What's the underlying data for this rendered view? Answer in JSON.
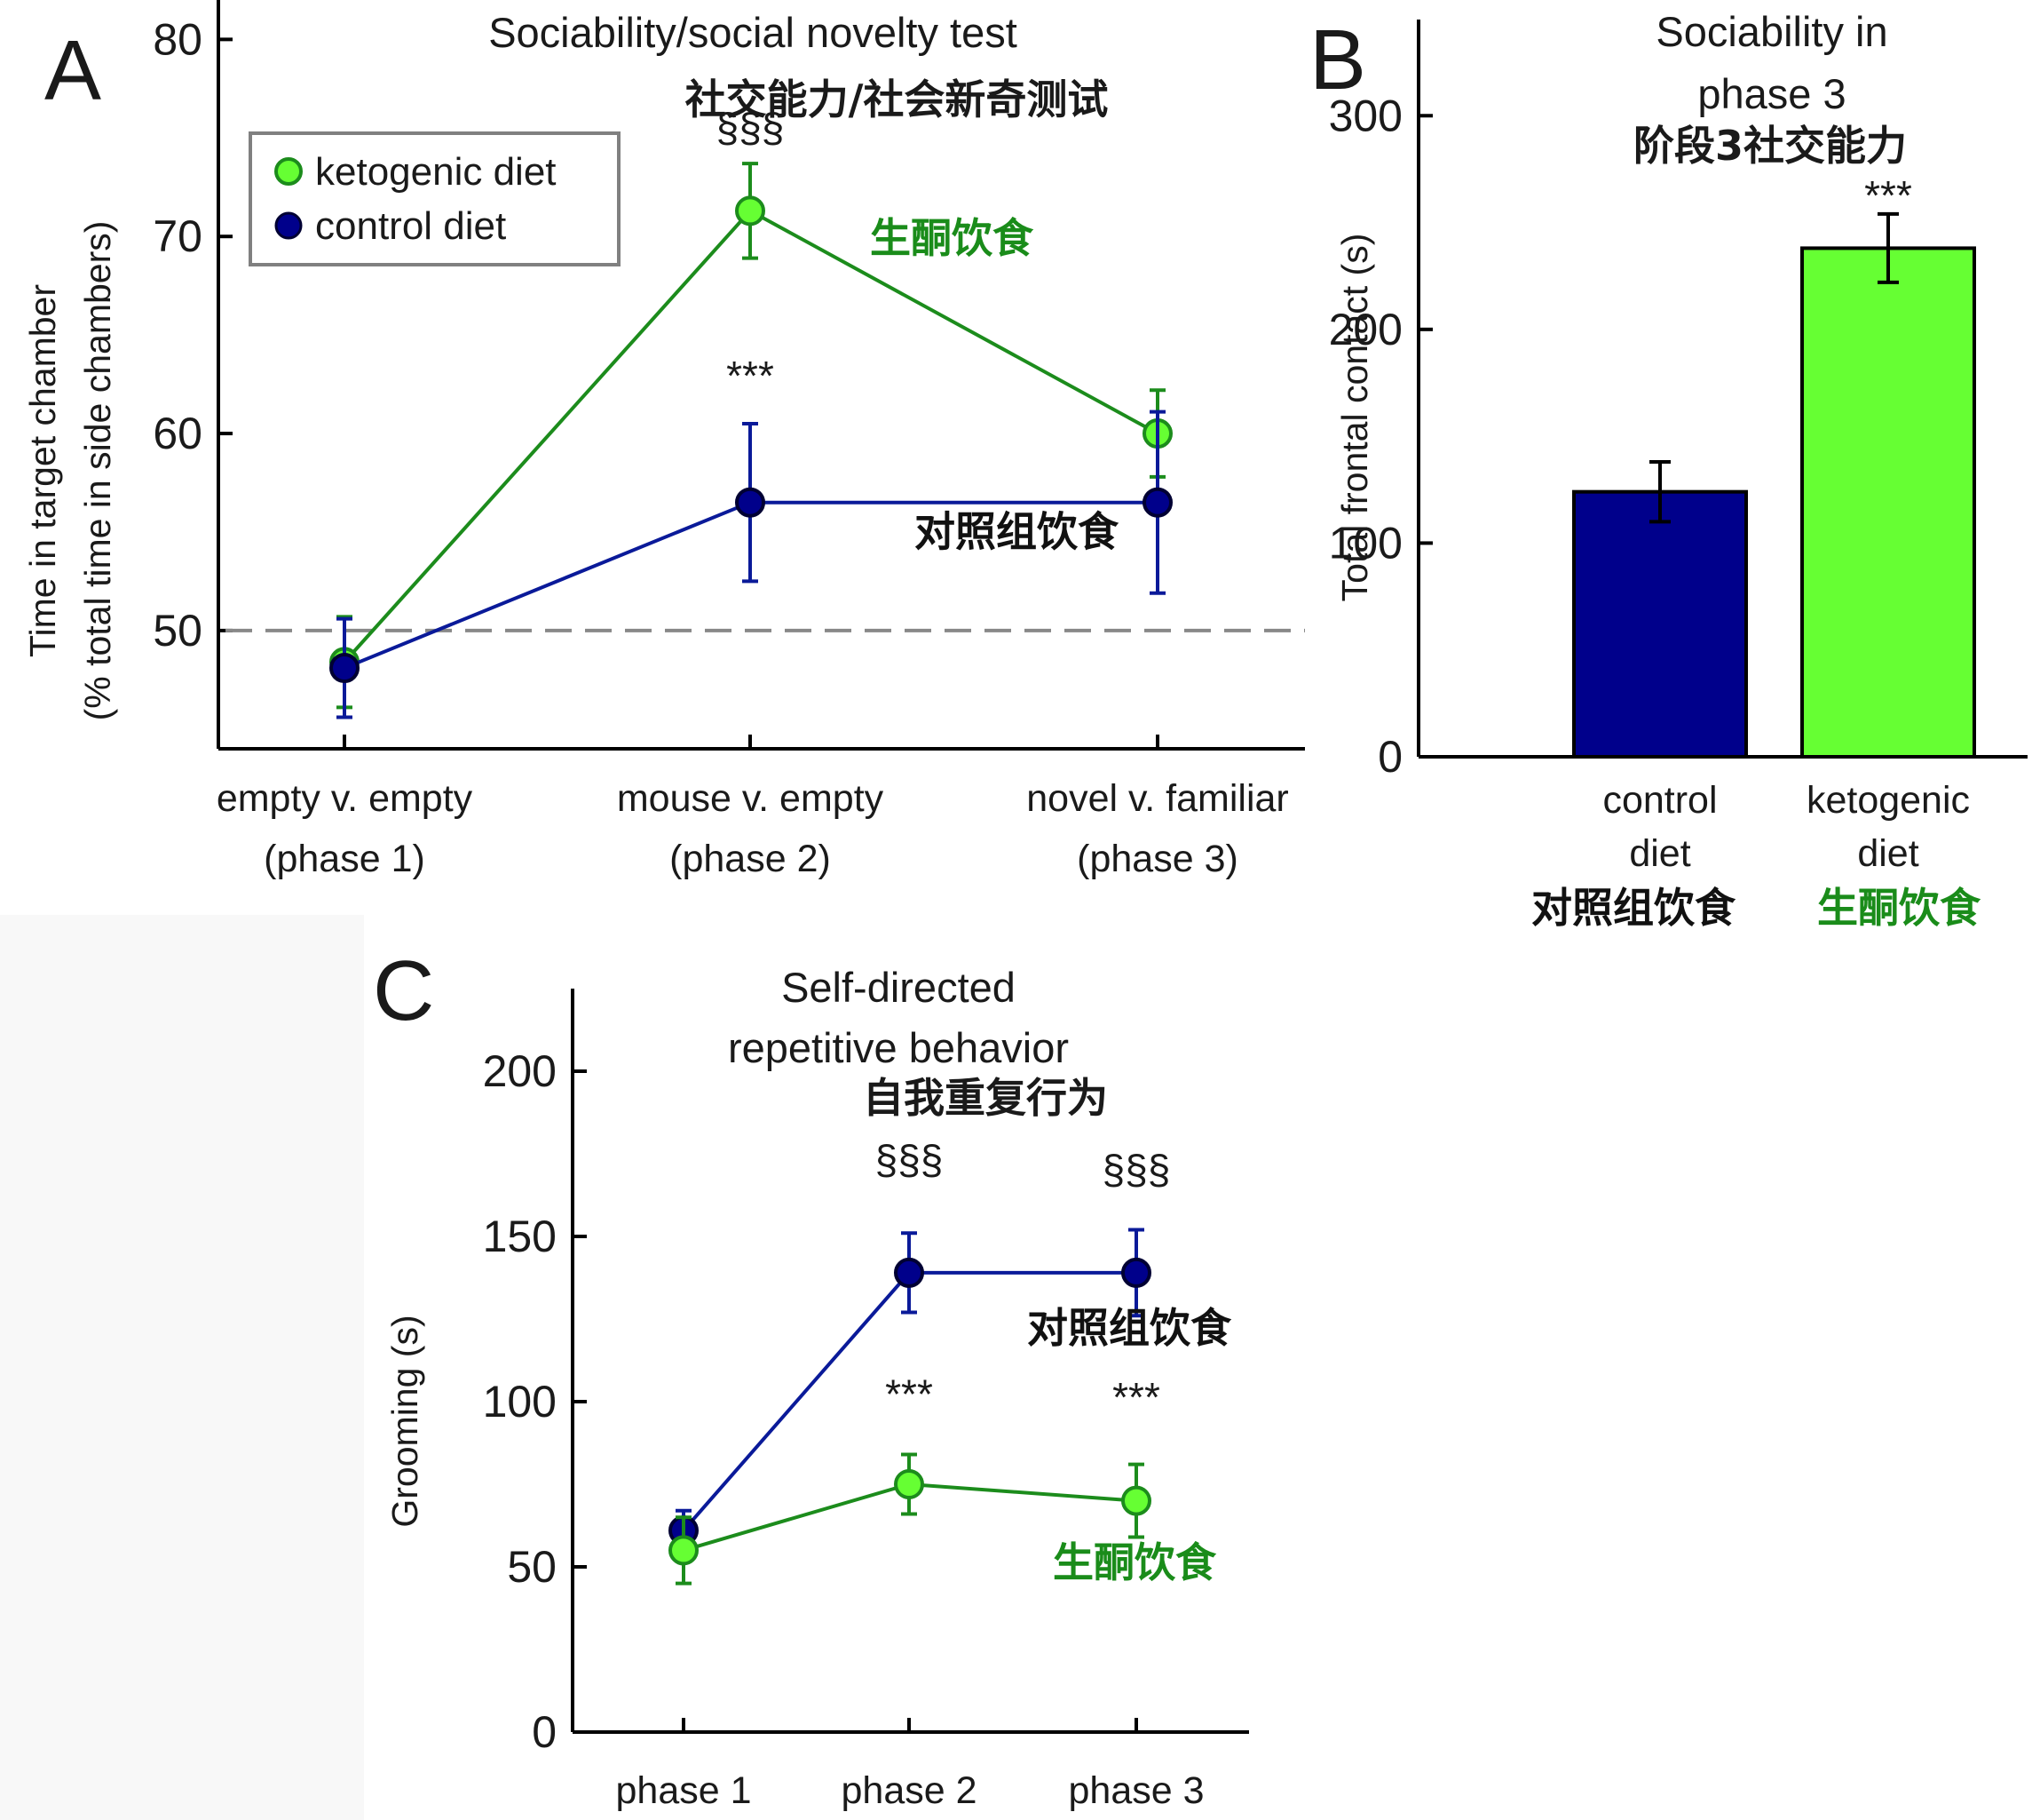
{
  "colors": {
    "ketogenic": "#66ff33",
    "ketogenic_line": "#1c8c1c",
    "control": "#00008b",
    "control_line": "#0a1a99",
    "axis": "#000000",
    "reference": "#888888",
    "cn_title": "#ff1e2e",
    "cn_keto": "#1a8c1a",
    "cn_control": "#111111"
  },
  "chart_data": [
    {
      "panel": "A",
      "type": "line",
      "title": "Sociability/social novelty test",
      "title_cn": "社交能力/社会新奇测试",
      "ylabel": "Time in target chamber",
      "ylabel2": "(% total time in side chambers)",
      "xlabel": "",
      "ylim": [
        44,
        82
      ],
      "yticks": [
        50,
        60,
        70,
        80
      ],
      "categories": [
        [
          "empty v. empty",
          "(phase 1)"
        ],
        [
          "mouse v. empty",
          "(phase 2)"
        ],
        [
          "novel v. familiar",
          "(phase 3)"
        ]
      ],
      "reference_line": 50,
      "grid": false,
      "legend_position": "top-left",
      "series": [
        {
          "key": "control",
          "name": "control diet",
          "label_cn": "对照组饮食",
          "values": [
            48.1,
            56.5,
            56.5
          ],
          "errors": [
            2.5,
            4.0,
            4.6
          ]
        },
        {
          "key": "ketogenic",
          "name": "ketogenic diet",
          "label_cn": "生酮饮食",
          "values": [
            48.4,
            71.3,
            60.0
          ],
          "errors": [
            2.3,
            2.4,
            2.2
          ]
        }
      ],
      "annotations": [
        {
          "text": "§§§",
          "x": 1,
          "y": 74.8
        },
        {
          "text": "***",
          "x": 1,
          "y": 62.2
        }
      ]
    },
    {
      "panel": "B",
      "type": "bar",
      "title": "Sociability in",
      "title2": "phase 3",
      "title_cn": "阶段3社交能力",
      "ylabel": "Total frontal contact (s)",
      "xlabel": "",
      "ylim": [
        0,
        345
      ],
      "yticks": [
        0,
        100,
        200,
        300
      ],
      "grid": false,
      "categories": [
        {
          "line1": "control",
          "line2": "diet",
          "cn": "对照组饮食"
        },
        {
          "line1": "ketogenic",
          "line2": "diet",
          "cn": "生酮饮食"
        }
      ],
      "values": [
        124,
        238
      ],
      "errors": [
        14,
        16
      ],
      "annotations": [
        {
          "text": "***",
          "x": 1,
          "y": 262
        }
      ]
    },
    {
      "panel": "C",
      "type": "line",
      "title": "Self-directed",
      "title2": "repetitive behavior",
      "title_cn": "自我重复行为",
      "ylabel": "Grooming (s)",
      "xlabel": "",
      "ylim": [
        0,
        225
      ],
      "yticks": [
        0,
        50,
        100,
        150,
        200
      ],
      "categories": [
        "phase 1",
        "phase 2",
        "phase 3"
      ],
      "grid": false,
      "series": [
        {
          "key": "control",
          "name": "control diet",
          "label_cn": "对照组饮食",
          "values": [
            61,
            139,
            139
          ],
          "errors": [
            6,
            12,
            13
          ]
        },
        {
          "key": "ketogenic",
          "name": "ketogenic diet",
          "label_cn": "生酮饮食",
          "values": [
            55,
            75,
            70
          ],
          "errors": [
            10,
            9,
            11
          ]
        }
      ],
      "annotations": [
        {
          "text": "§§§",
          "x": 1,
          "y": 169
        },
        {
          "text": "§§§",
          "x": 2,
          "y": 166
        },
        {
          "text": "***",
          "x": 1,
          "y": 98
        },
        {
          "text": "***",
          "x": 2,
          "y": 97
        }
      ]
    }
  ]
}
